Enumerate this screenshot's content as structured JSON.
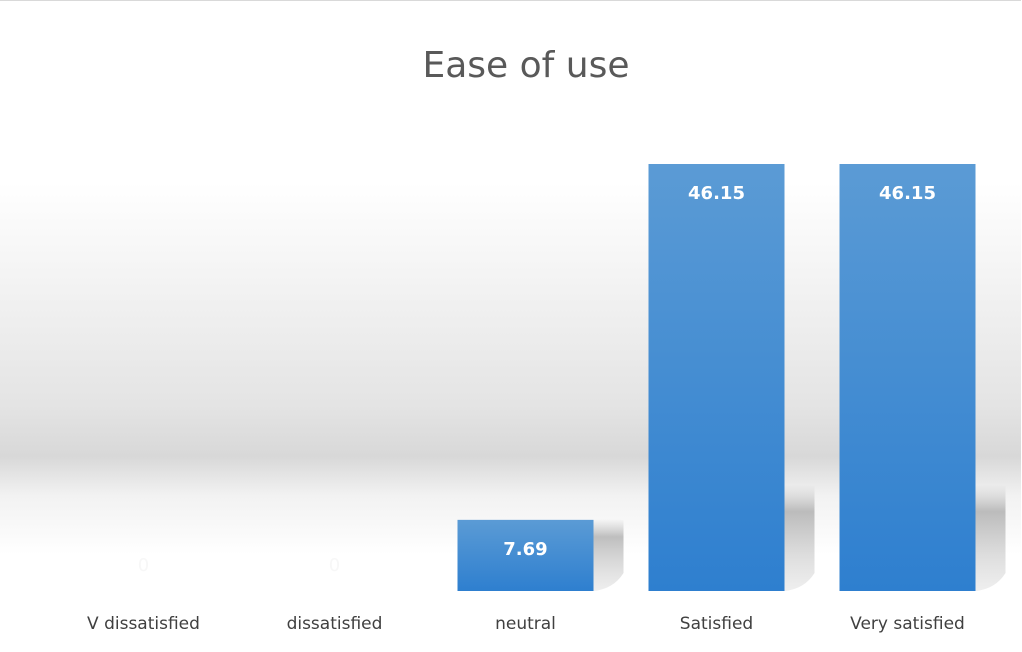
{
  "chart_data": {
    "type": "bar",
    "title": "Ease of use",
    "xlabel": "",
    "ylabel": "",
    "categories": [
      "V dissatisfied",
      "dissatisfied",
      "neutral",
      "Satisfied",
      "Very satisfied"
    ],
    "values": [
      0,
      0,
      7.69,
      46.15,
      46.15
    ],
    "data_labels": [
      "0",
      "0",
      "7.69",
      "46.15",
      "46.15"
    ],
    "ylim": [
      0,
      50
    ],
    "grid": false,
    "legend": "none",
    "colors": {
      "bar_top": "#5b9bd5",
      "bar_bottom": "#2e7fcf",
      "zero_label": "#f7f7f7"
    }
  }
}
